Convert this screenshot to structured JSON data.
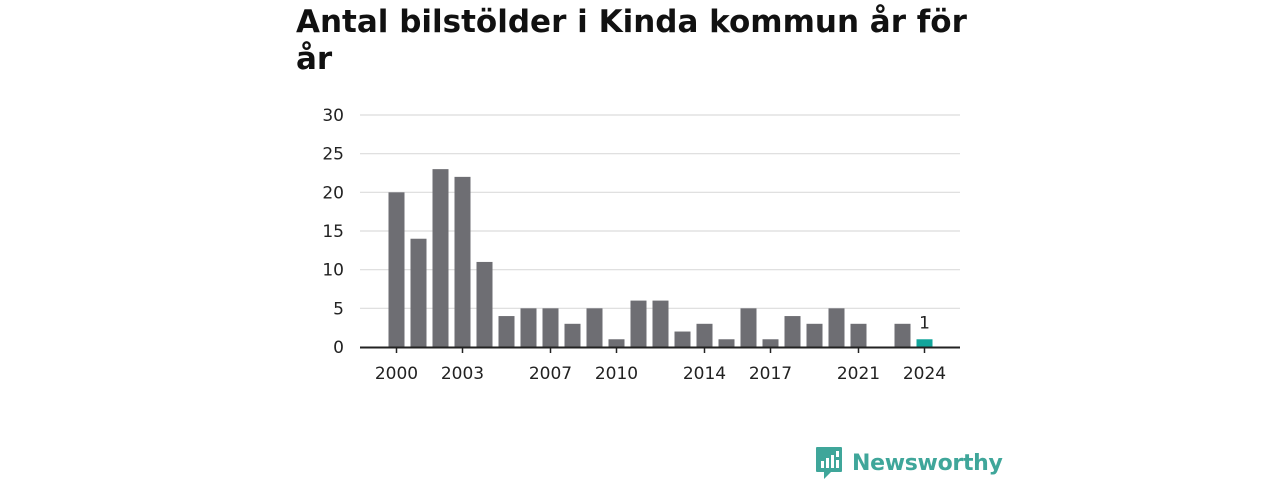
{
  "title": "Antal bilstölder i Kinda kommun år för år",
  "brand": {
    "name": "Newsworthy",
    "icon": "newsworthy-logo-icon",
    "color": "#3fa69a"
  },
  "colors": {
    "bar": "#6e6e73",
    "highlight": "#12a59b",
    "grid": "#dcdcdc",
    "axis": "#222222"
  },
  "chart_data": {
    "type": "bar",
    "title": "Antal bilstölder i Kinda kommun år för år",
    "xlabel": "",
    "ylabel": "",
    "categories": [
      "2000",
      "2001",
      "2002",
      "2003",
      "2004",
      "2005",
      "2006",
      "2007",
      "2008",
      "2009",
      "2010",
      "2011",
      "2012",
      "2013",
      "2014",
      "2015",
      "2016",
      "2017",
      "2018",
      "2019",
      "2020",
      "2021",
      "2022",
      "2023",
      "2024"
    ],
    "values": [
      20,
      14,
      23,
      22,
      11,
      4,
      5,
      5,
      3,
      5,
      1,
      6,
      6,
      2,
      3,
      1,
      5,
      1,
      4,
      3,
      5,
      3,
      0,
      3,
      1
    ],
    "x_tick_labels": [
      "2000",
      "2003",
      "2007",
      "2010",
      "2014",
      "2017",
      "2021",
      "2024"
    ],
    "y_ticks": [
      0,
      5,
      10,
      15,
      20,
      25,
      30
    ],
    "ylim": [
      0,
      30
    ],
    "grid": true,
    "legend": "none",
    "highlight_category": "2024",
    "data_labels": [
      {
        "category": "2024",
        "text": "1"
      }
    ]
  }
}
